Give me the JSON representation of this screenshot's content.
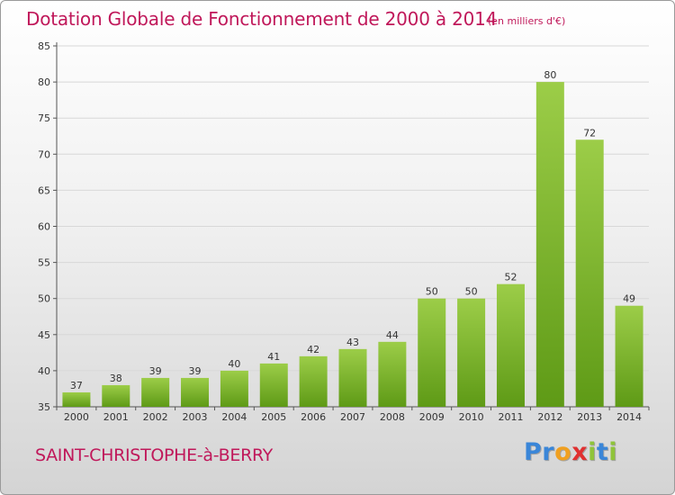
{
  "chart_data": {
    "type": "bar",
    "title": "Dotation Globale de Fonctionnement de 2000 à 2014",
    "subtitle": "(en milliers d'€)",
    "categories": [
      "2000",
      "2001",
      "2002",
      "2003",
      "2004",
      "2005",
      "2006",
      "2007",
      "2008",
      "2009",
      "2010",
      "2011",
      "2012",
      "2013",
      "2014"
    ],
    "values": [
      37,
      38,
      39,
      39,
      40,
      41,
      42,
      43,
      44,
      50,
      50,
      52,
      80,
      72,
      49
    ],
    "ylim": [
      35,
      85
    ],
    "yticks": [
      35,
      40,
      45,
      50,
      55,
      60,
      65,
      70,
      75,
      80,
      85
    ],
    "grid": true,
    "bar_color_top": "#9ccd48",
    "bar_color_bottom": "#5e9a16"
  },
  "footer": {
    "commune": "SAINT-CHRISTOPHE-à-BERRY"
  },
  "logo": {
    "letters": [
      {
        "char": "P",
        "color": "#3a86d8"
      },
      {
        "char": "r",
        "color": "#3a86d8"
      },
      {
        "char": "o",
        "color": "#f0a020"
      },
      {
        "char": "x",
        "color": "#e03030"
      },
      {
        "char": "i",
        "color": "#8fc43a"
      },
      {
        "char": "t",
        "color": "#3a86d8"
      },
      {
        "char": "i",
        "color": "#8fc43a"
      }
    ]
  }
}
